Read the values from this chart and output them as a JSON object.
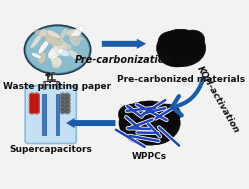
{
  "background_color": "#f2f2f2",
  "labels": {
    "waste_paper": "Waste printing paper",
    "pre_carb_step": "Pre-carbonization",
    "pre_carb_mat": "Pre-carbonized materials",
    "koh": "KOH-activation",
    "wppcs": "WPPCs",
    "supercap": "Supercapacitors"
  },
  "label_fontsize": 6.5,
  "step_fontsize": 7,
  "arrow_color": "#1a5ca8",
  "supercap_body_color": "#c5e0f5",
  "supercap_electrode_color": "#3a7abd",
  "supercap_red_ion": "#cc1100",
  "supercap_gray_ion": "#666666",
  "wppcs_line_color": "#2244bb",
  "waste_oval_color": "#7aadcc",
  "waste_oval_edge": "#4488aa",
  "blob_color": "#0a0a0a",
  "wppc_bg": "#080808"
}
